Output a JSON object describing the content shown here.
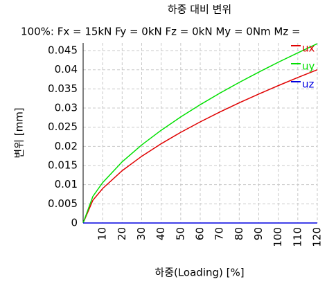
{
  "chart_data": {
    "type": "line",
    "title": "하중 대비 변위",
    "subtitle": "100%: Fx = 15kN Fy = 0kN Fz = 0kN My = 0Nm Mz =",
    "x_label": "하중(Loading) [%]",
    "y_label": "변위 [mm]",
    "x": [
      0,
      5,
      10,
      20,
      30,
      40,
      50,
      60,
      70,
      80,
      90,
      100,
      110,
      120
    ],
    "series": [
      {
        "name": "ux",
        "color": "#e00000",
        "values": [
          0,
          0.00594,
          0.009,
          0.01365,
          0.01741,
          0.02069,
          0.02366,
          0.02639,
          0.02895,
          0.03137,
          0.03366,
          0.03586,
          0.03797,
          0.04
        ]
      },
      {
        "name": "uy",
        "color": "#00e000",
        "values": [
          0,
          0.00695,
          0.01053,
          0.01597,
          0.02037,
          0.02421,
          0.02768,
          0.03088,
          0.03387,
          0.0367,
          0.03938,
          0.04196,
          0.04442,
          0.0468
        ]
      },
      {
        "name": "uz",
        "color": "#0000e0",
        "values": [
          0,
          0,
          0,
          0,
          0,
          0,
          0,
          0,
          0,
          0,
          0,
          0,
          0,
          0
        ]
      }
    ],
    "xlim": [
      0,
      120
    ],
    "xticks": [
      10,
      20,
      30,
      40,
      50,
      60,
      70,
      80,
      90,
      100,
      110,
      120
    ],
    "ylim": [
      0,
      0.047
    ],
    "yticks": [
      0,
      0.005,
      0.01,
      0.015,
      0.02,
      0.025,
      0.03,
      0.035,
      0.04,
      0.045
    ],
    "grid": true,
    "legend": "top-right"
  }
}
